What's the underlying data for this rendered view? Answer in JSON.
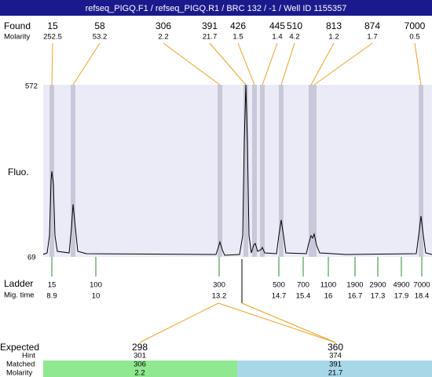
{
  "header": {
    "title": "refseq_PIGQ.F1 / refseq_PIGQ.R1 / BRC 132 / -1 / Well ID 1155357"
  },
  "found": {
    "label": "Found",
    "molarity_label": "Molarity",
    "peaks": [
      {
        "size": 15,
        "molarity": 252.5
      },
      {
        "size": 58,
        "molarity": 53.2
      },
      {
        "size": 306,
        "molarity": 2.2
      },
      {
        "size": 391,
        "molarity": 21.7
      },
      {
        "size": 426,
        "molarity": 1.5
      },
      {
        "size": 445,
        "molarity": 1.4
      },
      {
        "size": 510,
        "molarity": 4.2
      },
      {
        "size": 813,
        "molarity": 1.2
      },
      {
        "size": 874,
        "molarity": 1.7
      },
      {
        "size": 7000,
        "molarity": 0.5
      }
    ]
  },
  "fluo": {
    "label": "Fluo.",
    "top": 572,
    "bottom": 69
  },
  "ladder": {
    "label": "Ladder",
    "time_label": "Mig. time",
    "items": [
      {
        "size": 15,
        "time": 8.9
      },
      {
        "size": 100,
        "time": 10
      },
      {
        "size": 300,
        "time": 13.2
      },
      {
        "size": 500,
        "time": 14.7
      },
      {
        "size": 700,
        "time": 15.4
      },
      {
        "size": 1100,
        "time": 16
      },
      {
        "size": 1900,
        "time": 16.7
      },
      {
        "size": 2900,
        "time": 17.3
      },
      {
        "size": 4900,
        "time": 17.9
      },
      {
        "size": 7000,
        "time": 18.4
      }
    ]
  },
  "expected": {
    "label": "Expected",
    "hint_label": "Hint",
    "matched_label": "Matched",
    "molarity_label": "Molarity",
    "items": [
      {
        "expected": 298,
        "hint": 301,
        "matched": 306,
        "molarity": 2.2
      },
      {
        "expected": 360,
        "hint": 374,
        "matched": 391,
        "molarity": 21.7
      }
    ]
  }
}
